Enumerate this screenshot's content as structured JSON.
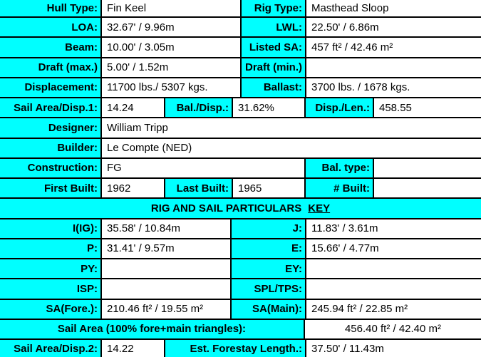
{
  "colors": {
    "label_bg": "#00FFFF",
    "value_bg": "#FFFFFF",
    "border": "#000000",
    "text": "#000000"
  },
  "table": {
    "spec": {
      "hull_type": {
        "label": "Hull Type:",
        "value": "Fin Keel"
      },
      "rig_type": {
        "label": "Rig Type:",
        "value": "Masthead Sloop"
      },
      "loa": {
        "label": "LOA:",
        "value": "32.67' / 9.96m"
      },
      "lwl": {
        "label": "LWL:",
        "value": "22.50' / 6.86m"
      },
      "beam": {
        "label": "Beam:",
        "value": "10.00' / 3.05m"
      },
      "listed_sa": {
        "label": "Listed SA:",
        "value": "457 ft² / 42.46 m²"
      },
      "draft_max": {
        "label": "Draft (max.)",
        "value": "5.00' / 1.52m"
      },
      "draft_min": {
        "label": "Draft (min.)",
        "value": ""
      },
      "displacement": {
        "label": "Displacement:",
        "value": "11700 lbs./ 5307 kgs."
      },
      "ballast": {
        "label": "Ballast:",
        "value": "3700 lbs. / 1678 kgs."
      },
      "sa_disp1": {
        "label": "Sail Area/Disp.1:",
        "value": "14.24"
      },
      "bal_disp": {
        "label": "Bal./Disp.:",
        "value": "31.62%"
      },
      "disp_len": {
        "label": "Disp./Len.:",
        "value": "458.55"
      },
      "designer": {
        "label": "Designer:",
        "value": "William Tripp"
      },
      "builder": {
        "label": "Builder:",
        "value": "Le Compte (NED)"
      },
      "construction": {
        "label": "Construction:",
        "value": "FG"
      },
      "bal_type": {
        "label": "Bal. type:",
        "value": ""
      },
      "first_built": {
        "label": "First Built:",
        "value": "1962"
      },
      "last_built": {
        "label": "Last Built:",
        "value": "1965"
      },
      "num_built": {
        "label": "# Built:",
        "value": ""
      }
    },
    "rig_header": {
      "title": "RIG AND SAIL PARTICULARS",
      "key_link": "KEY"
    },
    "rig": {
      "i_ig": {
        "label": "I(IG):",
        "value": "35.58' / 10.84m"
      },
      "j": {
        "label": "J:",
        "value": "11.83' / 3.61m"
      },
      "p": {
        "label": "P:",
        "value": "31.41' / 9.57m"
      },
      "e": {
        "label": "E:",
        "value": "15.66' / 4.77m"
      },
      "py": {
        "label": "PY:",
        "value": ""
      },
      "ey": {
        "label": "EY:",
        "value": ""
      },
      "isp": {
        "label": "ISP:",
        "value": ""
      },
      "spl_tps": {
        "label": "SPL/TPS:",
        "value": ""
      },
      "sa_fore": {
        "label": "SA(Fore.):",
        "value": "210.46 ft² / 19.55 m²"
      },
      "sa_main": {
        "label": "SA(Main):",
        "value": "245.94 ft² / 22.85 m²"
      },
      "sail_area_100": {
        "label": "Sail Area (100% fore+main triangles):",
        "value": "456.40 ft² / 42.40 m²"
      },
      "sa_disp2": {
        "label": "Sail Area/Disp.2:",
        "value": "14.22"
      },
      "forestay": {
        "label": "Est. Forestay Length.:",
        "value": "37.50' / 11.43m"
      }
    }
  }
}
